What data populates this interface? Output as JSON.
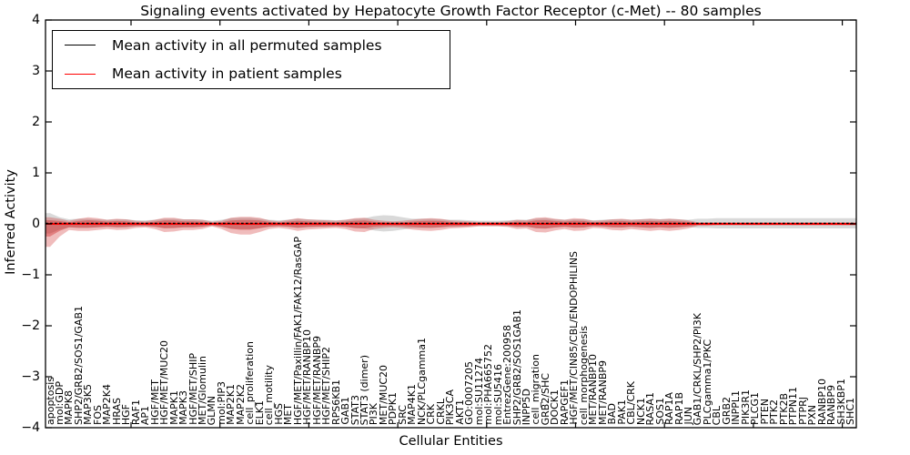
{
  "title": "Signaling events activated by Hepatocyte Growth Factor Receptor (c-Met) -- 80 samples",
  "legend": {
    "permuted_label": "Mean activity in all permuted samples",
    "patient_label": "Mean activity in patient samples"
  },
  "axes": {
    "ylabel": "Inferred Activity",
    "xlabel": "Cellular Entities",
    "yticks": [
      "4",
      "3",
      "2",
      "1",
      "0",
      "−1",
      "−2",
      "−3",
      "−4"
    ]
  },
  "colors": {
    "permuted_line": "#000000",
    "patient_line": "#ff0000",
    "patient_band": "#cc2222",
    "permuted_band": "#9a9a9a",
    "frame": "#000000"
  },
  "chart_data": {
    "type": "line",
    "title": "Signaling events activated by Hepatocyte Growth Factor Receptor (c-Met) -- 80 samples",
    "xlabel": "Cellular Entities",
    "ylabel": "Inferred Activity",
    "ylim": [
      -4,
      4
    ],
    "grid": false,
    "legend_position": "upper left",
    "entities": [
      "apoptosis",
      "mol:GDP",
      "MAPK8",
      "SHP2/GRB2/SOS1/GAB1",
      "MAP3K5",
      "FOS",
      "MAP2K4",
      "HRAS",
      "HGF",
      "RAF1",
      "AP1",
      "HGF/MET",
      "HGF/MET/MUC20",
      "MAPK1",
      "MAPK3",
      "HGF/MET/SHIP",
      "MET/Glomulin",
      "GLMN",
      "mol:PIP3",
      "MAP2K1",
      "MAP2K2",
      "cell_proliferation",
      "ELK1",
      "cell_motility",
      "HGS",
      "MET",
      "HGF/MET/Paxillin/FAK1/FAK12/RasGAP",
      "HGF/MET/RANBP10",
      "HGF/MET/RANBP9",
      "HGF/MET/SHIP2",
      "RPS6KB1",
      "GAB1",
      "STAT3",
      "STAT3 (dimer)",
      "PI3K",
      "MET/MUC20",
      "PDPK1",
      "SRC",
      "MAP4K1",
      "NCK/PLCgamma1",
      "CRK",
      "CRKL",
      "PIK3CA",
      "AKT1",
      "GO:0007205",
      "mol:SU11274",
      "mol:PHA665752",
      "mol:SU5416",
      "EntrezGene:200958",
      "SHP2/GRB2/SOS1GAB1",
      "INPP5D",
      "cell_migration",
      "GRB2/SHC",
      "DOCK1",
      "RAPGEF1",
      "HGF/MET/CIN85/CBL/ENDOPHILINS",
      "cell_morphogenesis",
      "MET/RANBP10",
      "MET/RANBP9",
      "BAD",
      "PAK1",
      "CBL/CRK",
      "NCK1",
      "RASA1",
      "SOS1",
      "RAP1A",
      "RAP1B",
      "JUN",
      "GAB1/CRKL/SHP2/PI3K",
      "PLCgamma1/PKC",
      "CBL",
      "GRB2",
      "INPPL1",
      "PIK3R1",
      "PLCG1",
      "PTEN",
      "PTK2",
      "PTK2B",
      "PTPN11",
      "PTPRJ",
      "PXN",
      "RANBP10",
      "RANBP9",
      "SH3KBP1",
      "SHC1"
    ],
    "series": [
      {
        "name": "Mean activity in all permuted samples",
        "style": "dashed",
        "mean": 0.01
      },
      {
        "name": "Mean activity in patient samples",
        "style": "solid",
        "mean": 0.0
      }
    ],
    "patient_band_upper": [
      0.13,
      0.1,
      0.06,
      0.1,
      0.13,
      0.11,
      0.08,
      0.1,
      0.09,
      0.06,
      0.05,
      0.08,
      0.12,
      0.12,
      0.09,
      0.09,
      0.08,
      0.04,
      0.06,
      0.12,
      0.14,
      0.14,
      0.12,
      0.07,
      0.05,
      0.08,
      0.11,
      0.09,
      0.08,
      0.07,
      0.06,
      0.08,
      0.11,
      0.12,
      0.08,
      0.06,
      0.05,
      0.06,
      0.08,
      0.1,
      0.11,
      0.1,
      0.07,
      0.06,
      0.05,
      0.04,
      0.04,
      0.04,
      0.05,
      0.08,
      0.07,
      0.12,
      0.13,
      0.1,
      0.08,
      0.11,
      0.1,
      0.06,
      0.07,
      0.09,
      0.1,
      0.08,
      0.09,
      0.1,
      0.09,
      0.1,
      0.09,
      0.07,
      0.03,
      0.03,
      0.03,
      0.03,
      0.03,
      0.03,
      0.03,
      0.03,
      0.03,
      0.03,
      0.03,
      0.03,
      0.03,
      0.03,
      0.03,
      0.03,
      0.03
    ],
    "patient_band_lower": [
      -0.45,
      -0.25,
      -0.12,
      -0.14,
      -0.14,
      -0.12,
      -0.1,
      -0.12,
      -0.11,
      -0.08,
      -0.07,
      -0.1,
      -0.16,
      -0.15,
      -0.12,
      -0.12,
      -0.1,
      -0.05,
      -0.1,
      -0.18,
      -0.21,
      -0.21,
      -0.16,
      -0.1,
      -0.08,
      -0.1,
      -0.14,
      -0.11,
      -0.1,
      -0.09,
      -0.08,
      -0.1,
      -0.15,
      -0.16,
      -0.1,
      -0.08,
      -0.07,
      -0.08,
      -0.11,
      -0.13,
      -0.14,
      -0.12,
      -0.09,
      -0.08,
      -0.07,
      -0.05,
      -0.05,
      -0.05,
      -0.06,
      -0.1,
      -0.09,
      -0.16,
      -0.17,
      -0.13,
      -0.1,
      -0.14,
      -0.13,
      -0.08,
      -0.09,
      -0.12,
      -0.13,
      -0.1,
      -0.12,
      -0.14,
      -0.12,
      -0.14,
      -0.12,
      -0.09,
      -0.04,
      -0.04,
      -0.03,
      -0.03,
      -0.03,
      -0.03,
      -0.03,
      -0.03,
      -0.03,
      -0.03,
      -0.03,
      -0.03,
      -0.03,
      -0.03,
      -0.03,
      -0.03,
      -0.03
    ],
    "permuted_band_halfwidth": [
      0.2,
      0.12,
      0.08,
      0.09,
      0.09,
      0.08,
      0.07,
      0.08,
      0.08,
      0.06,
      0.06,
      0.07,
      0.09,
      0.09,
      0.08,
      0.08,
      0.07,
      0.05,
      0.07,
      0.1,
      0.11,
      0.11,
      0.09,
      0.07,
      0.06,
      0.07,
      0.09,
      0.08,
      0.07,
      0.07,
      0.06,
      0.07,
      0.09,
      0.1,
      0.14,
      0.16,
      0.15,
      0.12,
      0.09,
      0.09,
      0.09,
      0.08,
      0.07,
      0.07,
      0.06,
      0.05,
      0.05,
      0.05,
      0.06,
      0.07,
      0.07,
      0.09,
      0.1,
      0.08,
      0.07,
      0.08,
      0.08,
      0.06,
      0.07,
      0.08,
      0.08,
      0.07,
      0.08,
      0.09,
      0.08,
      0.09,
      0.08,
      0.07,
      0.09,
      0.09,
      0.1,
      0.1,
      0.1,
      0.1,
      0.1,
      0.1,
      0.1,
      0.1,
      0.1,
      0.1,
      0.1,
      0.1,
      0.1,
      0.1,
      0.1
    ]
  }
}
